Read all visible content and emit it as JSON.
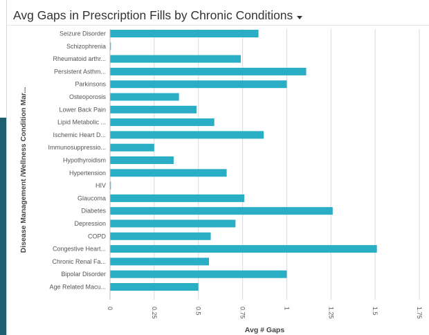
{
  "header": {
    "title": "Avg Gaps in Prescription Fills by Chronic Conditions",
    "menu_icon": "caret-down-icon"
  },
  "colors": {
    "bar": "#2aaec5",
    "grid": "#d9d9d9",
    "axis": "#bbbbbb"
  },
  "chart_data": {
    "type": "bar",
    "orientation": "horizontal",
    "title": "Avg Gaps in Prescription Fills by Chronic Conditions",
    "xlabel": "Avg # Gaps",
    "ylabel": "Disease Management /Wellness Condition Mar...",
    "xlim": [
      0,
      1.75
    ],
    "x_ticks": [
      "0",
      "0.25",
      "0.5",
      "0.75",
      "1",
      "1.25",
      "1.5",
      "1.75"
    ],
    "x_tick_values": [
      0,
      0.25,
      0.5,
      0.75,
      1,
      1.25,
      1.5,
      1.75
    ],
    "grid": true,
    "categories": [
      "Seizure Disorder",
      "Schizophrenia",
      "Rheumatoid arthr...",
      "Persistent Asthm...",
      "Parkinsons",
      "Osteoporosis",
      "Lower Back Pain",
      "Lipid Metabolic ...",
      "Ischemic Heart D...",
      "Immunosuppressio...",
      "Hypothyroidism",
      "Hypertension",
      "HIV",
      "Glaucoma",
      "Diabetes",
      "Depression",
      "COPD",
      "Congestive Heart...",
      "Chronic Renal Fa...",
      "Bipolar Disorder",
      "Age Related Macu..."
    ],
    "values": [
      0.84,
      0.005,
      0.74,
      1.11,
      1.0,
      0.39,
      0.49,
      0.59,
      0.87,
      0.25,
      0.36,
      0.66,
      0.005,
      0.76,
      1.26,
      0.71,
      0.57,
      1.51,
      0.56,
      1.0,
      0.5
    ]
  }
}
